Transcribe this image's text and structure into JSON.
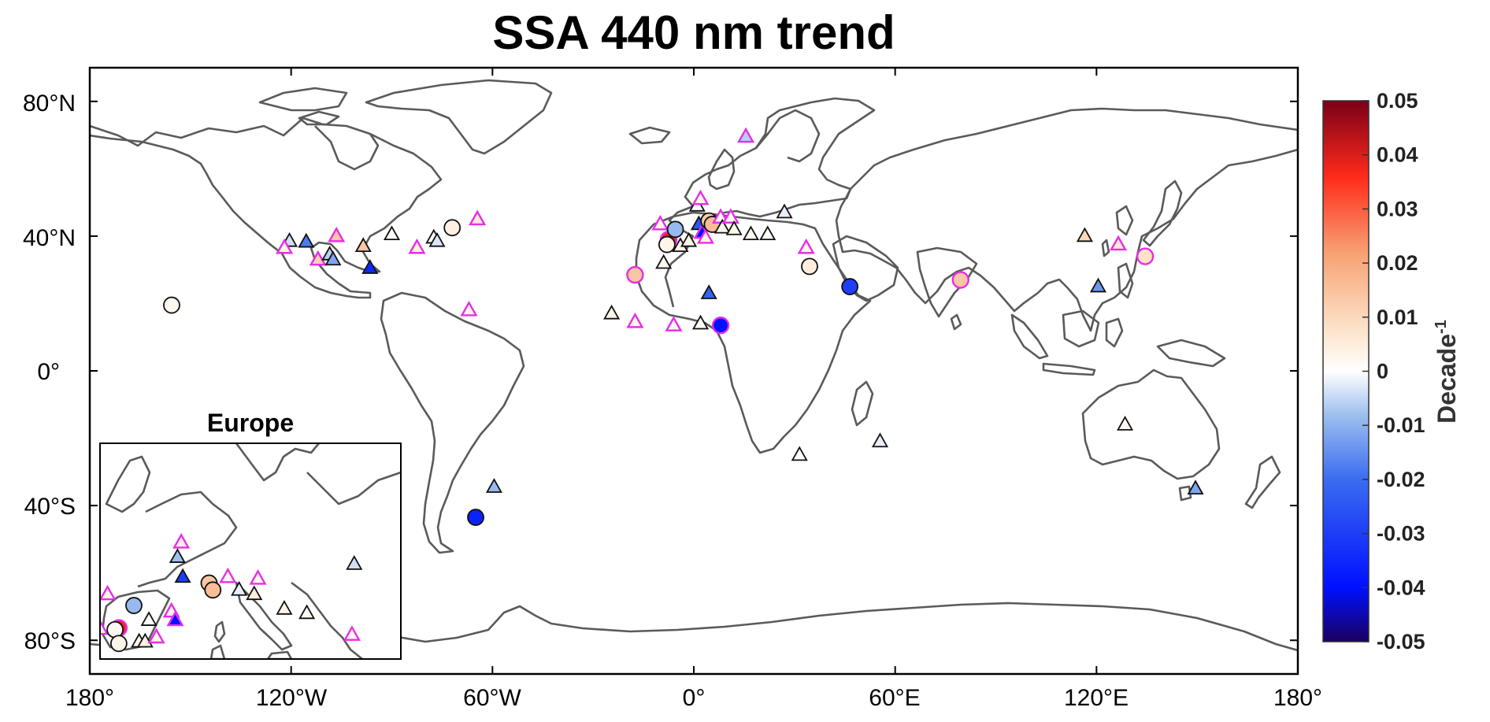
{
  "chart_data": {
    "type": "scatter",
    "title": "SSA 440 nm trend",
    "x_ticks": [
      "180°",
      "120°W",
      "60°W",
      "0°",
      "60°E",
      "120°E",
      "180°"
    ],
    "y_ticks": [
      "80°N",
      "40°N",
      "0°",
      "40°S",
      "80°S"
    ],
    "xlim": [
      -180,
      180
    ],
    "ylim": [
      -90,
      90
    ],
    "colorbar": {
      "label": "Decade",
      "label_exponent": "-1",
      "range": [
        -0.05,
        0.05
      ],
      "ticks": [
        "0.05",
        "0.04",
        "0.03",
        "0.02",
        "0.01",
        "0",
        "-0.01",
        "-0.02",
        "-0.03",
        "-0.04",
        "-0.05"
      ],
      "colormap": [
        "#1a0060",
        "#0010ff",
        "#3b6cf0",
        "#9fc0ee",
        "#ffffff",
        "#fde2c8",
        "#f7a072",
        "#ff2a1a",
        "#7a0018"
      ]
    },
    "inset": {
      "title": "Europe",
      "lon_range": [
        -10,
        30
      ],
      "lat_range": [
        35,
        60
      ]
    },
    "sites": [
      {
        "lon": -155.6,
        "lat": 19.5,
        "trend": 0.002,
        "marker": "circle",
        "sig": false
      },
      {
        "lon": -120.5,
        "lat": 38.5,
        "trend": -0.004,
        "marker": "triangle",
        "sig": false
      },
      {
        "lon": -115.5,
        "lat": 38.3,
        "trend": -0.018,
        "marker": "triangle",
        "sig": false
      },
      {
        "lon": -122.0,
        "lat": 36.5,
        "trend": 0.003,
        "marker": "triangle",
        "sig": true
      },
      {
        "lon": -112.0,
        "lat": 33.0,
        "trend": 0.012,
        "marker": "triangle",
        "sig": true
      },
      {
        "lon": -108.5,
        "lat": 34.5,
        "trend": -0.006,
        "marker": "triangle",
        "sig": false
      },
      {
        "lon": -107.5,
        "lat": 33.0,
        "trend": -0.012,
        "marker": "triangle",
        "sig": false
      },
      {
        "lon": -106.5,
        "lat": 40.0,
        "trend": 0.014,
        "marker": "triangle",
        "sig": true
      },
      {
        "lon": -98.5,
        "lat": 37.0,
        "trend": 0.014,
        "marker": "triangle",
        "sig": false
      },
      {
        "lon": -96.5,
        "lat": 30.5,
        "trend": -0.035,
        "marker": "triangle",
        "sig": false
      },
      {
        "lon": -90.0,
        "lat": 40.5,
        "trend": 0.001,
        "marker": "triangle",
        "sig": false
      },
      {
        "lon": -82.5,
        "lat": 36.5,
        "trend": 0.004,
        "marker": "triangle",
        "sig": true
      },
      {
        "lon": -77.5,
        "lat": 39.5,
        "trend": 0.001,
        "marker": "triangle",
        "sig": false
      },
      {
        "lon": -76.5,
        "lat": 38.5,
        "trend": -0.003,
        "marker": "triangle",
        "sig": false
      },
      {
        "lon": -72.0,
        "lat": 42.5,
        "trend": 0.004,
        "marker": "circle",
        "sig": false
      },
      {
        "lon": -64.5,
        "lat": 45.0,
        "trend": 0.006,
        "marker": "triangle",
        "sig": true
      },
      {
        "lon": -67.0,
        "lat": 18.0,
        "trend": 0.003,
        "marker": "triangle",
        "sig": true
      },
      {
        "lon": -65.0,
        "lat": -43.5,
        "trend": -0.036,
        "marker": "circle",
        "sig": false
      },
      {
        "lon": -59.5,
        "lat": -34.5,
        "trend": -0.009,
        "marker": "triangle",
        "sig": false
      },
      {
        "lon": -24.5,
        "lat": 17.0,
        "trend": 0.003,
        "marker": "triangle",
        "sig": false
      },
      {
        "lon": -17.5,
        "lat": 28.5,
        "trend": 0.014,
        "marker": "circle",
        "sig": true
      },
      {
        "lon": -17.5,
        "lat": 14.5,
        "trend": 0.002,
        "marker": "triangle",
        "sig": true
      },
      {
        "lon": -9.0,
        "lat": 32.0,
        "trend": 0.002,
        "marker": "triangle",
        "sig": false
      },
      {
        "lon": -10.0,
        "lat": 43.5,
        "trend": 0.002,
        "marker": "triangle",
        "sig": true
      },
      {
        "lon": -7.5,
        "lat": 39.0,
        "trend": 0.038,
        "marker": "circle",
        "sig": true
      },
      {
        "lon": -8.0,
        "lat": 37.5,
        "trend": 0.003,
        "marker": "circle",
        "sig": false
      },
      {
        "lon": -6.0,
        "lat": 13.5,
        "trend": 0.001,
        "marker": "triangle",
        "sig": true
      },
      {
        "lon": -5.5,
        "lat": 42.0,
        "trend": -0.009,
        "marker": "circle",
        "sig": false
      },
      {
        "lon": -4.0,
        "lat": 37.0,
        "trend": 0.003,
        "marker": "triangle",
        "sig": false
      },
      {
        "lon": -1.5,
        "lat": 38.5,
        "trend": 0.003,
        "marker": "triangle",
        "sig": false
      },
      {
        "lon": 1.0,
        "lat": 49.0,
        "trend": 0.001,
        "marker": "triangle",
        "sig": false
      },
      {
        "lon": 1.5,
        "lat": 43.5,
        "trend": -0.025,
        "marker": "triangle",
        "sig": false
      },
      {
        "lon": 2.0,
        "lat": 51.0,
        "trend": 0.003,
        "marker": "triangle",
        "sig": true
      },
      {
        "lon": 2.5,
        "lat": 41.0,
        "trend": -0.04,
        "marker": "triangle",
        "sig": true
      },
      {
        "lon": 2.0,
        "lat": 14.0,
        "trend": 0.001,
        "marker": "triangle",
        "sig": false
      },
      {
        "lon": 3.5,
        "lat": 39.5,
        "trend": 0.003,
        "marker": "triangle",
        "sig": true
      },
      {
        "lon": 4.5,
        "lat": 44.5,
        "trend": 0.013,
        "marker": "circle",
        "sig": false
      },
      {
        "lon": 5.5,
        "lat": 43.5,
        "trend": 0.016,
        "marker": "circle",
        "sig": false
      },
      {
        "lon": 4.5,
        "lat": 23.0,
        "trend": -0.022,
        "marker": "triangle",
        "sig": false
      },
      {
        "lon": 8.0,
        "lat": 45.5,
        "trend": 0.002,
        "marker": "triangle",
        "sig": true
      },
      {
        "lon": 8.5,
        "lat": 42.5,
        "trend": 0.003,
        "marker": "triangle",
        "sig": false
      },
      {
        "lon": 8.0,
        "lat": 13.5,
        "trend": -0.04,
        "marker": "circle",
        "sig": true
      },
      {
        "lon": 11.0,
        "lat": 45.5,
        "trend": 0.002,
        "marker": "triangle",
        "sig": true
      },
      {
        "lon": 12.0,
        "lat": 42.0,
        "trend": 0.003,
        "marker": "triangle",
        "sig": false
      },
      {
        "lon": 15.5,
        "lat": 69.5,
        "trend": -0.006,
        "marker": "triangle",
        "sig": true
      },
      {
        "lon": 17.0,
        "lat": 40.5,
        "trend": 0.002,
        "marker": "triangle",
        "sig": false
      },
      {
        "lon": 22.0,
        "lat": 40.5,
        "trend": 0.001,
        "marker": "triangle",
        "sig": false
      },
      {
        "lon": 27.0,
        "lat": 47.0,
        "trend": -0.002,
        "marker": "triangle",
        "sig": false
      },
      {
        "lon": 33.5,
        "lat": 36.5,
        "trend": 0.003,
        "marker": "triangle",
        "sig": true
      },
      {
        "lon": 34.5,
        "lat": 31.0,
        "trend": 0.005,
        "marker": "circle",
        "sig": false
      },
      {
        "lon": 31.5,
        "lat": -25.0,
        "trend": 0.001,
        "marker": "triangle",
        "sig": false
      },
      {
        "lon": 46.5,
        "lat": 25.0,
        "trend": -0.03,
        "marker": "circle",
        "sig": false
      },
      {
        "lon": 55.5,
        "lat": -21.0,
        "trend": -0.002,
        "marker": "triangle",
        "sig": false
      },
      {
        "lon": 79.5,
        "lat": 27.0,
        "trend": 0.014,
        "marker": "circle",
        "sig": true
      },
      {
        "lon": 116.5,
        "lat": 40.0,
        "trend": 0.01,
        "marker": "triangle",
        "sig": false
      },
      {
        "lon": 120.5,
        "lat": 25.0,
        "trend": -0.014,
        "marker": "triangle",
        "sig": false
      },
      {
        "lon": 126.5,
        "lat": 37.5,
        "trend": 0.006,
        "marker": "triangle",
        "sig": true
      },
      {
        "lon": 134.5,
        "lat": 34.0,
        "trend": 0.008,
        "marker": "circle",
        "sig": true
      },
      {
        "lon": 128.5,
        "lat": -16.0,
        "trend": 0.002,
        "marker": "triangle",
        "sig": false
      },
      {
        "lon": 149.5,
        "lat": -35.0,
        "trend": -0.012,
        "marker": "triangle",
        "sig": false
      }
    ],
    "inset_sites": [
      {
        "lon": -9.0,
        "lat": 42.5,
        "trend": 0.003,
        "marker": "triangle",
        "sig": true
      },
      {
        "lon": -10.0,
        "lat": 38.5,
        "trend": 0.002,
        "marker": "triangle",
        "sig": true
      },
      {
        "lon": -7.5,
        "lat": 38.6,
        "trend": 0.038,
        "marker": "circle",
        "sig": true
      },
      {
        "lon": -8.0,
        "lat": 38.4,
        "trend": 0.002,
        "marker": "circle",
        "sig": false
      },
      {
        "lon": -7.5,
        "lat": 36.8,
        "trend": 0.003,
        "marker": "circle",
        "sig": false
      },
      {
        "lon": -5.5,
        "lat": 41.2,
        "trend": -0.009,
        "marker": "circle",
        "sig": false
      },
      {
        "lon": -3.5,
        "lat": 39.5,
        "trend": 0.001,
        "marker": "triangle",
        "sig": false
      },
      {
        "lon": -4.8,
        "lat": 37.0,
        "trend": 0.003,
        "marker": "triangle",
        "sig": false
      },
      {
        "lon": -4.0,
        "lat": 37.0,
        "trend": 0.004,
        "marker": "triangle",
        "sig": false
      },
      {
        "lon": -2.5,
        "lat": 37.5,
        "trend": 0.003,
        "marker": "triangle",
        "sig": true
      },
      {
        "lon": -0.5,
        "lat": 40.5,
        "trend": 0.003,
        "marker": "triangle",
        "sig": true
      },
      {
        "lon": 0.0,
        "lat": 39.5,
        "trend": -0.04,
        "marker": "triangle",
        "sig": true
      },
      {
        "lon": 0.8,
        "lat": 48.5,
        "trend": 0.004,
        "marker": "triangle",
        "sig": true
      },
      {
        "lon": 0.3,
        "lat": 46.8,
        "trend": -0.008,
        "marker": "triangle",
        "sig": false
      },
      {
        "lon": 1.0,
        "lat": 44.5,
        "trend": -0.03,
        "marker": "triangle",
        "sig": false
      },
      {
        "lon": 4.5,
        "lat": 43.8,
        "trend": 0.014,
        "marker": "circle",
        "sig": false
      },
      {
        "lon": 5.0,
        "lat": 43.0,
        "trend": 0.016,
        "marker": "circle",
        "sig": false
      },
      {
        "lon": 7.0,
        "lat": 44.5,
        "trend": 0.002,
        "marker": "triangle",
        "sig": true
      },
      {
        "lon": 8.5,
        "lat": 43.0,
        "trend": -0.002,
        "marker": "triangle",
        "sig": false
      },
      {
        "lon": 10.5,
        "lat": 42.5,
        "trend": 0.005,
        "marker": "triangle",
        "sig": false
      },
      {
        "lon": 11.0,
        "lat": 44.3,
        "trend": 0.002,
        "marker": "triangle",
        "sig": true
      },
      {
        "lon": 14.5,
        "lat": 40.8,
        "trend": 0.003,
        "marker": "triangle",
        "sig": false
      },
      {
        "lon": 17.5,
        "lat": 40.3,
        "trend": 0.002,
        "marker": "triangle",
        "sig": false
      },
      {
        "lon": 23.5,
        "lat": 37.8,
        "trend": 0.002,
        "marker": "triangle",
        "sig": true
      },
      {
        "lon": 23.8,
        "lat": 46.0,
        "trend": -0.004,
        "marker": "triangle",
        "sig": false
      }
    ]
  }
}
